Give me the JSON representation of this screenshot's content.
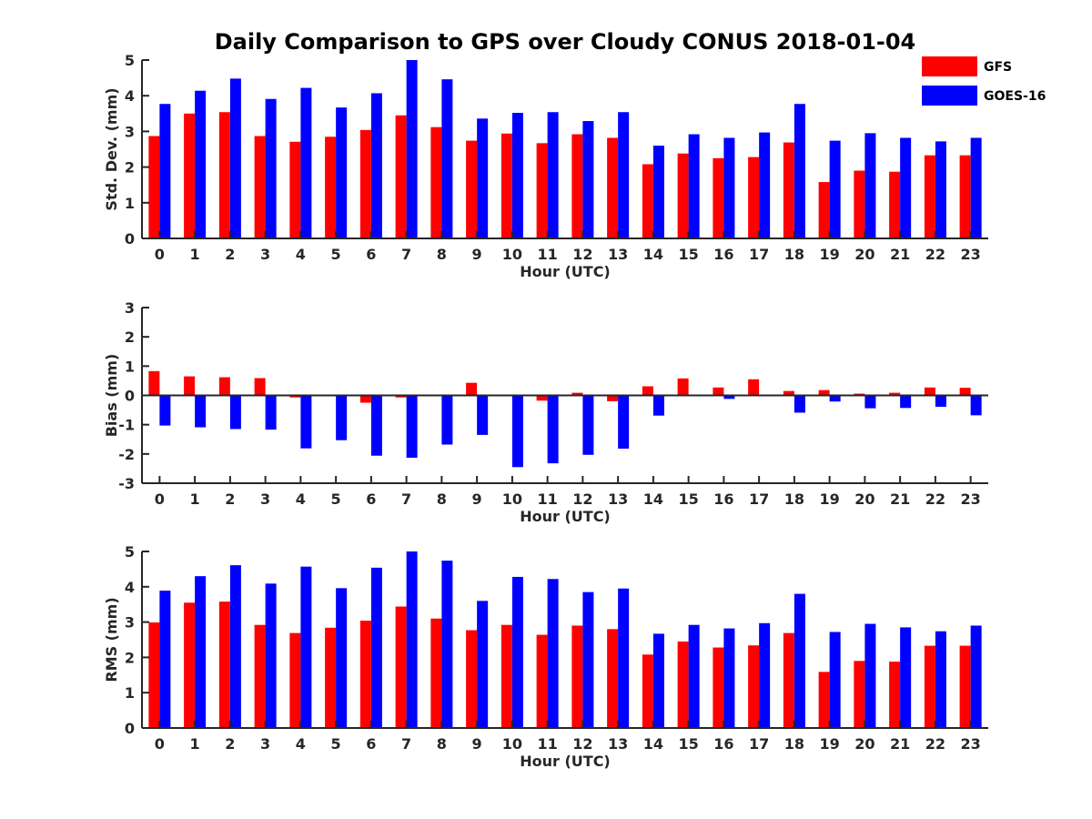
{
  "title": "Daily Comparison to GPS over Cloudy CONUS 2018-01-04",
  "legend": [
    {
      "name": "GFS",
      "color": "#ff0000"
    },
    {
      "name": "GOES-16",
      "color": "#0000ff"
    }
  ],
  "chart_data": [
    {
      "type": "bar",
      "ylabel": "Std. Dev. (mm)",
      "xlabel": "Hour (UTC)",
      "ylim": [
        0,
        5
      ],
      "yticks": [
        0,
        1,
        2,
        3,
        4,
        5
      ],
      "categories": [
        "0",
        "1",
        "2",
        "3",
        "4",
        "5",
        "6",
        "7",
        "8",
        "9",
        "10",
        "11",
        "12",
        "13",
        "14",
        "15",
        "16",
        "17",
        "18",
        "19",
        "20",
        "21",
        "22",
        "23"
      ],
      "series": [
        {
          "name": "GFS",
          "values": [
            2.87,
            3.5,
            3.54,
            2.87,
            2.71,
            2.85,
            3.04,
            3.45,
            3.12,
            2.74,
            2.94,
            2.67,
            2.92,
            2.82,
            2.08,
            2.38,
            2.25,
            2.28,
            2.69,
            1.58,
            1.9,
            1.87,
            2.33,
            2.33
          ]
        },
        {
          "name": "GOES-16",
          "values": [
            3.77,
            4.14,
            4.48,
            3.91,
            4.22,
            3.67,
            4.07,
            5.0,
            4.46,
            3.36,
            3.52,
            3.54,
            3.29,
            3.54,
            2.6,
            2.92,
            2.82,
            2.97,
            3.77,
            2.74,
            2.95,
            2.82,
            2.72,
            2.82
          ]
        }
      ]
    },
    {
      "type": "bar",
      "ylabel": "Bias (mm)",
      "xlabel": "Hour (UTC)",
      "ylim": [
        -3,
        3
      ],
      "yticks": [
        -3,
        -2,
        -1,
        0,
        1,
        2,
        3
      ],
      "categories": [
        "0",
        "1",
        "2",
        "3",
        "4",
        "5",
        "6",
        "7",
        "8",
        "9",
        "10",
        "11",
        "12",
        "13",
        "14",
        "15",
        "16",
        "17",
        "18",
        "19",
        "20",
        "21",
        "22",
        "23"
      ],
      "series": [
        {
          "name": "GFS",
          "values": [
            0.83,
            0.65,
            0.62,
            0.59,
            -0.07,
            0.0,
            -0.25,
            -0.07,
            0.0,
            0.43,
            0.0,
            -0.18,
            0.09,
            -0.2,
            0.31,
            0.58,
            0.27,
            0.55,
            0.15,
            0.18,
            0.06,
            0.09,
            0.27,
            0.26
          ]
        },
        {
          "name": "GOES-16",
          "values": [
            -1.03,
            -1.09,
            -1.15,
            -1.17,
            -1.81,
            -1.53,
            -2.06,
            -2.13,
            -1.68,
            -1.35,
            -2.45,
            -2.32,
            -2.03,
            -1.82,
            -0.69,
            0.0,
            -0.12,
            0.0,
            -0.59,
            -0.21,
            -0.44,
            -0.43,
            -0.39,
            -0.68
          ]
        }
      ]
    },
    {
      "type": "bar",
      "ylabel": "RMS (mm)",
      "xlabel": "Hour (UTC)",
      "ylim": [
        0,
        5
      ],
      "yticks": [
        0,
        1,
        2,
        3,
        4,
        5
      ],
      "categories": [
        "0",
        "1",
        "2",
        "3",
        "4",
        "5",
        "6",
        "7",
        "8",
        "9",
        "10",
        "11",
        "12",
        "13",
        "14",
        "15",
        "16",
        "17",
        "18",
        "19",
        "20",
        "21",
        "22",
        "23"
      ],
      "series": [
        {
          "name": "GFS",
          "values": [
            2.99,
            3.55,
            3.58,
            2.92,
            2.69,
            2.84,
            3.04,
            3.44,
            3.1,
            2.77,
            2.92,
            2.64,
            2.9,
            2.8,
            2.08,
            2.45,
            2.28,
            2.34,
            2.69,
            1.59,
            1.9,
            1.88,
            2.33,
            2.33
          ]
        },
        {
          "name": "GOES-16",
          "values": [
            3.89,
            4.3,
            4.61,
            4.09,
            4.57,
            3.96,
            4.54,
            5.0,
            4.74,
            3.6,
            4.28,
            4.22,
            3.85,
            3.95,
            2.67,
            2.92,
            2.82,
            2.97,
            3.8,
            2.72,
            2.95,
            2.85,
            2.74,
            2.9
          ]
        }
      ]
    }
  ]
}
